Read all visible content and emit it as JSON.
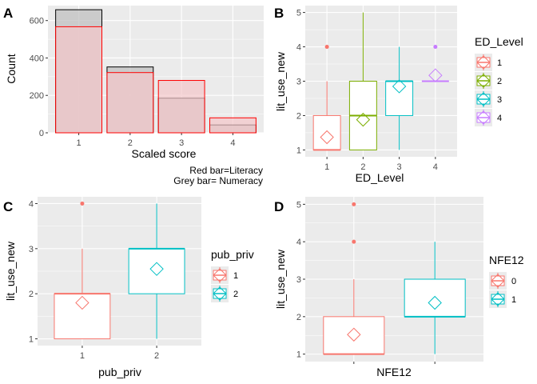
{
  "chart_data": [
    {
      "panel": "A",
      "type": "bar",
      "xlabel": "Scaled score",
      "ylabel": "Count",
      "categories": [
        "1",
        "2",
        "3",
        "4"
      ],
      "ylim": [
        0,
        680
      ],
      "yticks": [
        0,
        200,
        400,
        600
      ],
      "grid": true,
      "series": [
        {
          "name": "Numeracy",
          "values": [
            658,
            352,
            185,
            42
          ],
          "color": "#000000",
          "fill": "#bdbdbd"
        },
        {
          "name": "Literacy",
          "values": [
            567,
            322,
            280,
            80
          ],
          "color": "#ff0000",
          "fill": "#f4c6c9"
        }
      ],
      "annotations": [
        "Red bar=Literacy",
        "Grey bar= Numeracy"
      ]
    },
    {
      "panel": "B",
      "type": "box",
      "xlabel": "ED_Level",
      "ylabel": "lit_use_new",
      "categories": [
        "1",
        "2",
        "3",
        "4"
      ],
      "ylim": [
        0.8,
        5.2
      ],
      "yticks": [
        1,
        2,
        3,
        4,
        5
      ],
      "legend_title": "ED_Level",
      "legend_labels": [
        "1",
        "2",
        "3",
        "4"
      ],
      "colors": [
        "#F8766D",
        "#7CAE00",
        "#00BFC4",
        "#C77CFF"
      ],
      "boxes": [
        {
          "min": 1,
          "q1": 1,
          "median": 1,
          "q3": 2,
          "max": 3,
          "mean": 1.37,
          "outliers": [
            4
          ]
        },
        {
          "min": 1,
          "q1": 1,
          "median": 2,
          "q3": 3,
          "max": 5,
          "mean": 1.88,
          "outliers": []
        },
        {
          "min": 1,
          "q1": 2,
          "median": 3,
          "q3": 3,
          "max": 4,
          "mean": 2.85,
          "outliers": []
        },
        {
          "min": 3,
          "q1": 3,
          "median": 3,
          "q3": 3,
          "max": 3,
          "mean": 3.17,
          "outliers": [
            4
          ]
        }
      ],
      "grid": true,
      "legend_position": "right"
    },
    {
      "panel": "C",
      "type": "box",
      "xlabel": "pub_priv",
      "ylabel": "lit_use_new",
      "categories": [
        "1",
        "2"
      ],
      "ylim": [
        0.85,
        4.15
      ],
      "yticks": [
        1,
        2,
        3,
        4
      ],
      "legend_title": "pub_priv",
      "legend_labels": [
        "1",
        "2"
      ],
      "colors": [
        "#F8766D",
        "#00BFC4"
      ],
      "boxes": [
        {
          "min": 1,
          "q1": 1,
          "median": 2,
          "q3": 2,
          "max": 3,
          "mean": 1.8,
          "outliers": [
            4
          ]
        },
        {
          "min": 1,
          "q1": 2,
          "median": 3,
          "q3": 3,
          "max": 4,
          "mean": 2.55,
          "outliers": []
        }
      ],
      "grid": true,
      "legend_position": "right"
    },
    {
      "panel": "D",
      "type": "box",
      "xlabel": "NFE12",
      "ylabel": "lit_use_new",
      "categories": [
        "",
        ""
      ],
      "ylim": [
        0.8,
        5.2
      ],
      "yticks": [
        1,
        2,
        3,
        4,
        5
      ],
      "legend_title": "NFE12",
      "legend_labels": [
        "0",
        "1"
      ],
      "colors": [
        "#F8766D",
        "#00BFC4"
      ],
      "boxes": [
        {
          "min": 1,
          "q1": 1,
          "median": 1,
          "q3": 2,
          "max": 3,
          "mean": 1.52,
          "outliers": [
            4,
            5
          ]
        },
        {
          "min": 1,
          "q1": 2,
          "median": 2,
          "q3": 3,
          "max": 4,
          "mean": 2.37,
          "outliers": []
        }
      ],
      "grid": true,
      "legend_position": "right"
    }
  ],
  "panel_tags": [
    "A",
    "B",
    "C",
    "D"
  ]
}
